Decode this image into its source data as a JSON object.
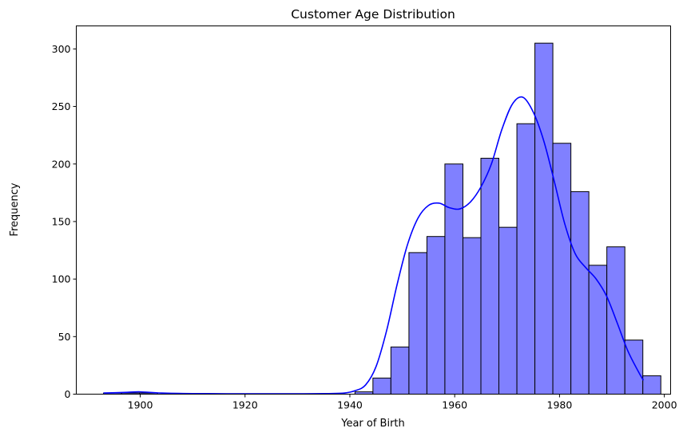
{
  "chart_data": {
    "type": "bar",
    "title": "Customer Age Distribution",
    "xlabel": "Year of Birth",
    "ylabel": "Frequency",
    "xlim": [
      1887.8,
      2001.2
    ],
    "ylim": [
      0,
      320
    ],
    "xticks": [
      1900,
      1920,
      1940,
      1960,
      1980,
      2000
    ],
    "yticks": [
      0,
      50,
      100,
      150,
      200,
      250,
      300
    ],
    "bar_color": "#8080ff",
    "edge_color": "#000000",
    "kde_color": "#0000ff",
    "grid": false,
    "legend": "none",
    "bins": [
      {
        "x0": 1893.0,
        "x1": 1896.43,
        "value": 1
      },
      {
        "x0": 1896.43,
        "x1": 1899.87,
        "value": 1
      },
      {
        "x0": 1899.87,
        "x1": 1903.3,
        "value": 1
      },
      {
        "x0": 1940.97,
        "x1": 1944.4,
        "value": 2
      },
      {
        "x0": 1944.4,
        "x1": 1947.83,
        "value": 14
      },
      {
        "x0": 1947.83,
        "x1": 1951.27,
        "value": 41
      },
      {
        "x0": 1951.27,
        "x1": 1954.7,
        "value": 123
      },
      {
        "x0": 1954.7,
        "x1": 1958.13,
        "value": 137
      },
      {
        "x0": 1958.13,
        "x1": 1961.57,
        "value": 200
      },
      {
        "x0": 1961.57,
        "x1": 1965.0,
        "value": 136
      },
      {
        "x0": 1965.0,
        "x1": 1968.43,
        "value": 205
      },
      {
        "x0": 1968.43,
        "x1": 1971.87,
        "value": 145
      },
      {
        "x0": 1971.87,
        "x1": 1975.3,
        "value": 235
      },
      {
        "x0": 1975.3,
        "x1": 1978.73,
        "value": 305
      },
      {
        "x0": 1978.73,
        "x1": 1982.17,
        "value": 218
      },
      {
        "x0": 1982.17,
        "x1": 1985.6,
        "value": 176
      },
      {
        "x0": 1985.6,
        "x1": 1989.03,
        "value": 112
      },
      {
        "x0": 1989.03,
        "x1": 1992.47,
        "value": 128
      },
      {
        "x0": 1992.47,
        "x1": 1995.9,
        "value": 47
      },
      {
        "x0": 1995.9,
        "x1": 1999.33,
        "value": 16
      }
    ],
    "kde": {
      "x": [
        1893,
        1897,
        1900,
        1904,
        1910,
        1920,
        1930,
        1936,
        1939,
        1941,
        1943,
        1945,
        1947,
        1949,
        1951,
        1953,
        1955,
        1957,
        1959,
        1961,
        1963,
        1965,
        1967,
        1969,
        1971,
        1973,
        1975,
        1977,
        1979,
        1981,
        1983,
        1985,
        1987,
        1989,
        1991,
        1993,
        1995,
        1996
      ],
      "y": [
        1,
        1.5,
        2,
        1,
        0.5,
        0.3,
        0.3,
        0.5,
        1,
        3,
        8,
        24,
        55,
        95,
        130,
        153,
        164,
        166,
        162,
        161,
        167,
        180,
        200,
        230,
        252,
        258,
        245,
        220,
        185,
        148,
        122,
        110,
        100,
        85,
        62,
        38,
        20,
        12
      ]
    }
  }
}
